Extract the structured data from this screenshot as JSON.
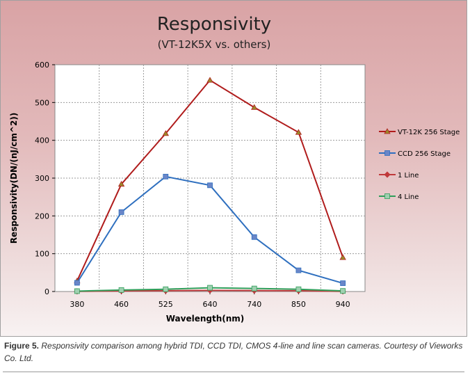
{
  "chart_data": {
    "type": "line",
    "title": "Responsivity",
    "subtitle": "(VT-12K5X vs. others)",
    "xlabel": "Wavelength(nm)",
    "ylabel": "Responsivity(DN/(nJ/cm^2))",
    "categories": [
      "380",
      "460",
      "525",
      "640",
      "740",
      "850",
      "940"
    ],
    "ylim": [
      0,
      600
    ],
    "yticks": [
      "0",
      "100",
      "200",
      "300",
      "400",
      "500",
      "600"
    ],
    "grid": "dotted",
    "legend_position": "right",
    "series": [
      {
        "name": "VT-12K 256 Stage",
        "values": [
          28,
          284,
          418,
          559,
          487,
          421,
          90
        ],
        "color": "#b01c1c",
        "marker": "triangle",
        "marker_color": "#9a8a2a"
      },
      {
        "name": "CCD 256 Stage",
        "values": [
          23,
          210,
          304,
          281,
          144,
          56,
          22
        ],
        "color": "#2e6fbf",
        "marker": "square",
        "marker_color": "#6a86c8"
      },
      {
        "name": "1 Line",
        "values": [
          0.5,
          1.5,
          2,
          3,
          2.5,
          2,
          0.5
        ],
        "color": "#c0393b",
        "marker": "diamond",
        "marker_color": "#c0393b"
      },
      {
        "name": "4 Line",
        "values": [
          1,
          4,
          6,
          10,
          8,
          6,
          1.5
        ],
        "color": "#2f9e5a",
        "marker": "square",
        "marker_color": "#9fd0b0"
      }
    ]
  },
  "caption": {
    "label": "Figure 5.",
    "text": "Responsivity comparison among hybrid TDI, CCD TDI, CMOS 4-line and line scan cameras. Courtesy of Vieworks Co. Ltd."
  }
}
